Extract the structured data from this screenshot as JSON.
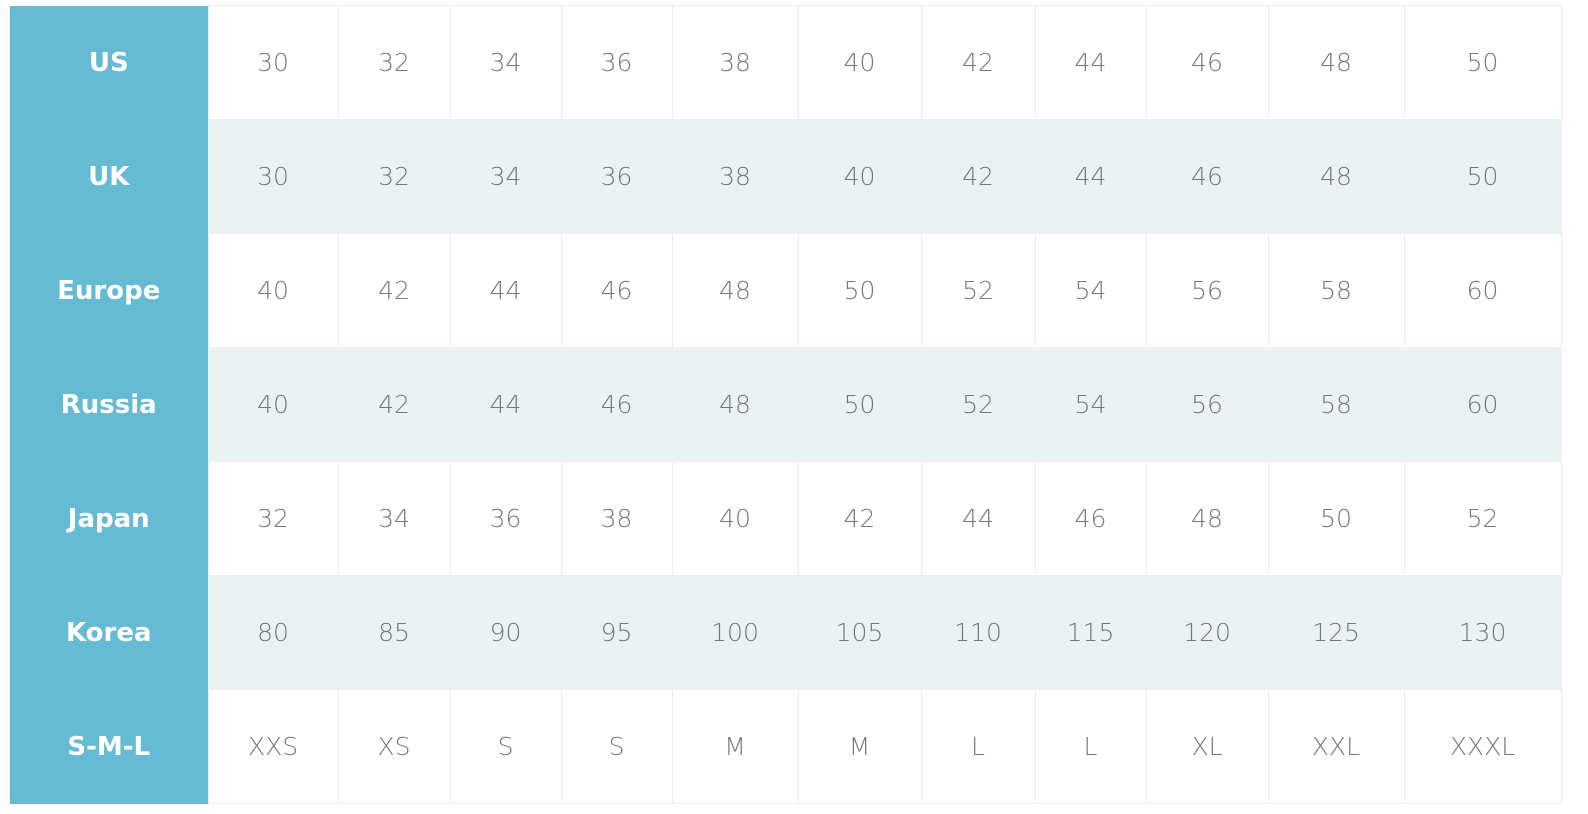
{
  "colors": {
    "header_bg": "#65bbd3",
    "stripe_bg": "#eaf2f4",
    "text": "#777777"
  },
  "rows": [
    {
      "label": "US",
      "values": [
        "30",
        "32",
        "34",
        "36",
        "38",
        "40",
        "42",
        "44",
        "46",
        "48",
        "50"
      ]
    },
    {
      "label": "UK",
      "values": [
        "30",
        "32",
        "34",
        "36",
        "38",
        "40",
        "42",
        "44",
        "46",
        "48",
        "50"
      ]
    },
    {
      "label": "Europe",
      "values": [
        "40",
        "42",
        "44",
        "46",
        "48",
        "50",
        "52",
        "54",
        "56",
        "58",
        "60"
      ]
    },
    {
      "label": "Russia",
      "values": [
        "40",
        "42",
        "44",
        "46",
        "48",
        "50",
        "52",
        "54",
        "56",
        "58",
        "60"
      ]
    },
    {
      "label": "Japan",
      "values": [
        "32",
        "34",
        "36",
        "38",
        "40",
        "42",
        "44",
        "46",
        "48",
        "50",
        "52"
      ]
    },
    {
      "label": "Korea",
      "values": [
        "80",
        "85",
        "90",
        "95",
        "100",
        "105",
        "110",
        "115",
        "120",
        "125",
        "130"
      ]
    },
    {
      "label": "S-M-L",
      "values": [
        "XXS",
        "XS",
        "S",
        "S",
        "M",
        "M",
        "L",
        "L",
        "XL",
        "XXL",
        "XXXL"
      ]
    }
  ]
}
